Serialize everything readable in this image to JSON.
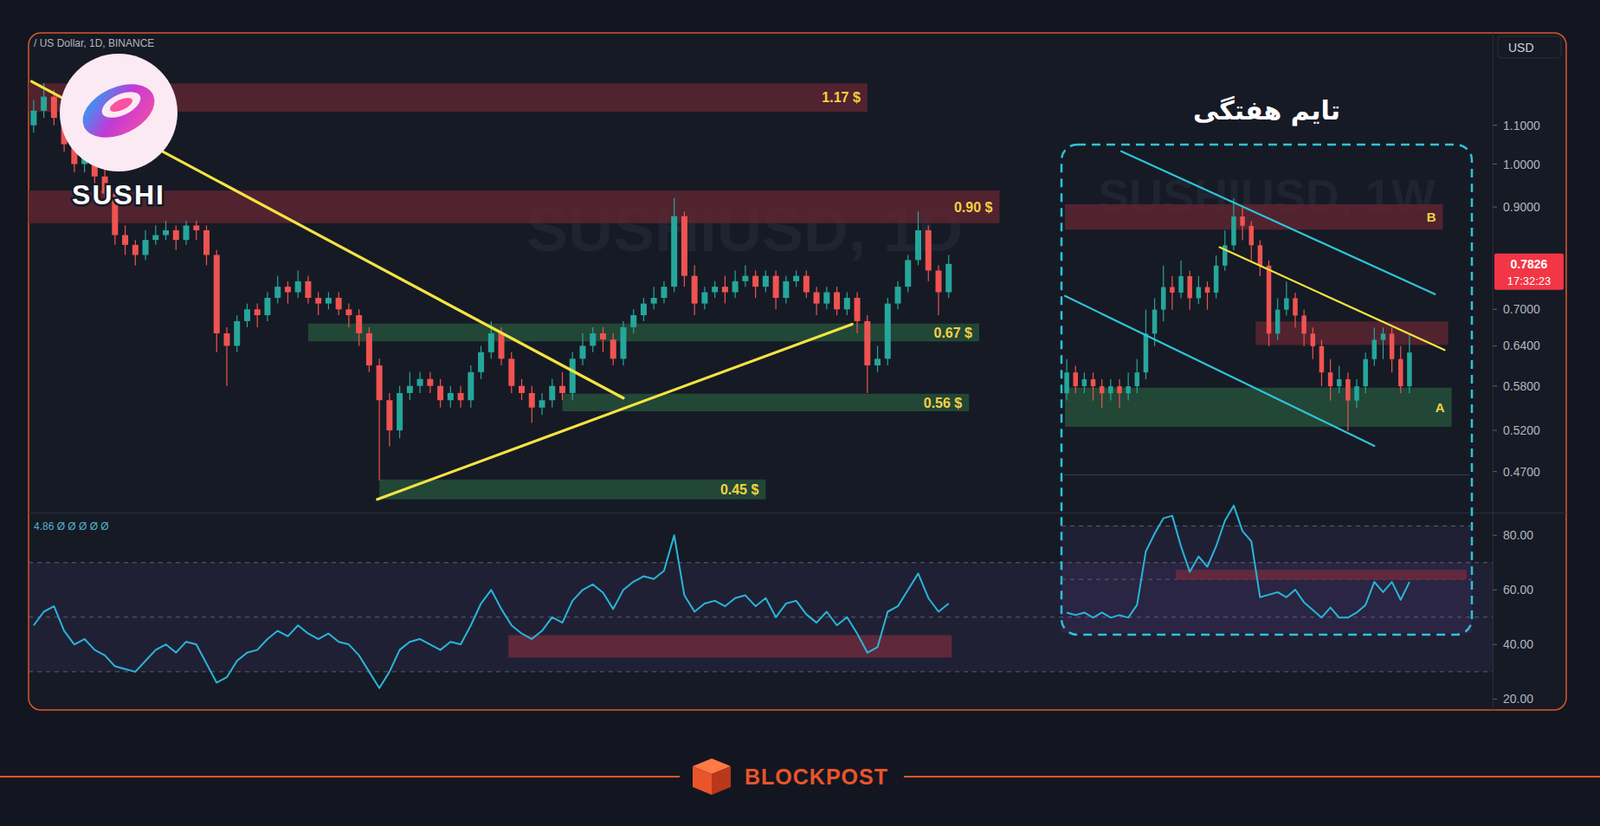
{
  "chart_data": [
    {
      "type": "candlestick",
      "title": "/ US Dollar, 1D, BINANCE",
      "watermark": "SUSHIUSD, 1D",
      "logo_text": "SUSHI",
      "currency": "USD",
      "countdown": "17:32:23",
      "log": "y",
      "grid": false,
      "categories": [
        null,
        null,
        null,
        null,
        null,
        null,
        null,
        null,
        null,
        null,
        null,
        null,
        null,
        null,
        null,
        null,
        null,
        null,
        null,
        null,
        null,
        null,
        null,
        null,
        null,
        null,
        null,
        null,
        null,
        null,
        null,
        null,
        null,
        null,
        null,
        null,
        null,
        null,
        null,
        null,
        null,
        null,
        null,
        null,
        null,
        null,
        null,
        null,
        null,
        null,
        null,
        null,
        null,
        null,
        null,
        null,
        null,
        null,
        null,
        null,
        null,
        null,
        null,
        null,
        null,
        null,
        null,
        null,
        null,
        null,
        null,
        null,
        null,
        null,
        null,
        null,
        null,
        null,
        null,
        null,
        null,
        null,
        null,
        null,
        null,
        null,
        null,
        null,
        null,
        null,
        null
      ],
      "open": [
        1.1,
        1.14,
        1.18,
        1.12,
        1.05,
        1.0,
        1.02,
        0.97,
        0.93,
        0.84,
        0.82,
        0.8,
        0.83,
        0.84,
        0.85,
        0.83,
        0.86,
        0.85,
        0.8,
        0.66,
        0.64,
        0.68,
        0.7,
        0.69,
        0.72,
        0.74,
        0.73,
        0.75,
        0.72,
        0.71,
        0.72,
        0.7,
        0.69,
        0.66,
        0.61,
        0.56,
        0.52,
        0.57,
        0.58,
        0.59,
        0.58,
        0.56,
        0.57,
        0.56,
        0.6,
        0.63,
        0.66,
        0.62,
        0.58,
        0.57,
        0.55,
        0.56,
        0.58,
        0.57,
        0.62,
        0.64,
        0.66,
        0.65,
        0.62,
        0.67,
        0.69,
        0.71,
        0.72,
        0.74,
        0.88,
        0.76,
        0.71,
        0.73,
        0.74,
        0.73,
        0.75,
        0.76,
        0.74,
        0.76,
        0.72,
        0.75,
        0.76,
        0.73,
        0.71,
        0.73,
        0.7,
        0.72,
        0.68,
        0.61,
        0.62,
        0.71,
        0.74,
        0.79,
        0.85,
        0.77,
        0.73
      ],
      "high": [
        1.17,
        1.22,
        1.2,
        1.14,
        1.07,
        1.04,
        1.03,
        0.99,
        0.94,
        0.86,
        0.83,
        0.85,
        0.86,
        0.87,
        0.86,
        0.87,
        0.87,
        0.86,
        0.81,
        0.67,
        0.69,
        0.71,
        0.71,
        0.73,
        0.76,
        0.75,
        0.77,
        0.76,
        0.73,
        0.73,
        0.73,
        0.71,
        0.7,
        0.67,
        0.62,
        0.57,
        0.58,
        0.6,
        0.6,
        0.6,
        0.59,
        0.58,
        0.58,
        0.61,
        0.64,
        0.68,
        0.67,
        0.63,
        0.59,
        0.58,
        0.57,
        0.59,
        0.6,
        0.63,
        0.66,
        0.67,
        0.67,
        0.66,
        0.68,
        0.7,
        0.72,
        0.74,
        0.75,
        0.92,
        0.89,
        0.78,
        0.74,
        0.75,
        0.76,
        0.77,
        0.78,
        0.77,
        0.77,
        0.77,
        0.76,
        0.77,
        0.77,
        0.74,
        0.74,
        0.74,
        0.73,
        0.73,
        0.69,
        0.64,
        0.72,
        0.75,
        0.8,
        0.89,
        0.86,
        0.78,
        0.8
      ],
      "low": [
        1.08,
        1.12,
        1.1,
        1.03,
        0.98,
        0.98,
        0.95,
        0.91,
        0.82,
        0.8,
        0.78,
        0.79,
        0.82,
        0.83,
        0.81,
        0.82,
        0.83,
        0.78,
        0.63,
        0.58,
        0.63,
        0.67,
        0.67,
        0.68,
        0.71,
        0.71,
        0.72,
        0.71,
        0.69,
        0.7,
        0.69,
        0.67,
        0.64,
        0.6,
        0.46,
        0.5,
        0.51,
        0.56,
        0.57,
        0.57,
        0.55,
        0.55,
        0.55,
        0.55,
        0.59,
        0.62,
        0.61,
        0.57,
        0.56,
        0.53,
        0.54,
        0.55,
        0.56,
        0.56,
        0.61,
        0.63,
        0.63,
        0.61,
        0.61,
        0.66,
        0.68,
        0.7,
        0.71,
        0.73,
        0.74,
        0.69,
        0.7,
        0.72,
        0.71,
        0.72,
        0.74,
        0.72,
        0.73,
        0.7,
        0.71,
        0.74,
        0.72,
        0.69,
        0.7,
        0.69,
        0.69,
        0.66,
        0.57,
        0.6,
        0.61,
        0.7,
        0.73,
        0.78,
        0.75,
        0.69,
        0.72
      ],
      "close": [
        1.14,
        1.18,
        1.12,
        1.05,
        1.0,
        1.02,
        0.97,
        0.93,
        0.84,
        0.82,
        0.8,
        0.83,
        0.84,
        0.85,
        0.83,
        0.86,
        0.85,
        0.8,
        0.66,
        0.64,
        0.68,
        0.7,
        0.69,
        0.72,
        0.74,
        0.73,
        0.75,
        0.72,
        0.71,
        0.72,
        0.7,
        0.69,
        0.66,
        0.61,
        0.56,
        0.52,
        0.57,
        0.58,
        0.59,
        0.58,
        0.56,
        0.57,
        0.56,
        0.6,
        0.63,
        0.66,
        0.62,
        0.58,
        0.57,
        0.55,
        0.56,
        0.58,
        0.57,
        0.62,
        0.64,
        0.66,
        0.65,
        0.62,
        0.67,
        0.69,
        0.71,
        0.72,
        0.74,
        0.88,
        0.76,
        0.71,
        0.73,
        0.74,
        0.73,
        0.75,
        0.76,
        0.74,
        0.76,
        0.72,
        0.75,
        0.76,
        0.73,
        0.71,
        0.73,
        0.7,
        0.72,
        0.68,
        0.61,
        0.62,
        0.71,
        0.74,
        0.79,
        0.85,
        0.77,
        0.73,
        0.7826
      ],
      "xlim": [
        -0.5,
        143.5
      ],
      "ylim": [
        0.425,
        1.38
      ],
      "yticks": [
        {
          "value": 1.1,
          "label": "1.1000"
        },
        {
          "value": 1.0,
          "label": "1.0000"
        },
        {
          "value": 0.9,
          "label": "0.9000"
        },
        {
          "value": 0.7,
          "label": "0.7000"
        },
        {
          "value": 0.64,
          "label": "0.6400"
        },
        {
          "value": 0.58,
          "label": "0.5800"
        },
        {
          "value": 0.52,
          "label": "0.5200"
        },
        {
          "value": 0.47,
          "label": "0.4700"
        }
      ],
      "zones": [
        {
          "label": "1.17 $",
          "x0": -0.5,
          "x1": 82,
          "low": 1.137,
          "high": 1.219,
          "color": "#5c2631"
        },
        {
          "label": "0.90 $",
          "x0": -0.5,
          "x1": 95,
          "low": 0.865,
          "high": 0.937,
          "color": "#5c2631"
        },
        {
          "label": "0.67 $",
          "x0": 27,
          "x1": 93,
          "low": 0.647,
          "high": 0.676,
          "color": "#24503a"
        },
        {
          "label": "0.56 $",
          "x0": 52,
          "x1": 92,
          "low": 0.545,
          "high": 0.569,
          "color": "#24503a"
        },
        {
          "label": "0.45 $",
          "x0": 34,
          "x1": 72,
          "low": 0.439,
          "high": 0.461,
          "color": "#24503a"
        }
      ],
      "trendlines": [
        {
          "x0": -0.2,
          "y0": 1.225,
          "x1": 58,
          "y1": 0.563,
          "color": "#f5e342"
        },
        {
          "x0": 33.8,
          "y0": 0.439,
          "x1": 80.5,
          "y1": 0.675,
          "color": "#f5e342"
        }
      ]
    },
    {
      "type": "line",
      "title": "4.86  Ø Ø Ø Ø Ø",
      "grid": false,
      "categories": [
        null,
        null,
        null,
        null,
        null,
        null,
        null,
        null,
        null,
        null,
        null,
        null,
        null,
        null,
        null,
        null,
        null,
        null,
        null,
        null,
        null,
        null,
        null,
        null,
        null,
        null,
        null,
        null,
        null,
        null,
        null,
        null,
        null,
        null,
        null,
        null,
        null,
        null,
        null,
        null,
        null,
        null,
        null,
        null,
        null,
        null,
        null,
        null,
        null,
        null,
        null,
        null,
        null,
        null,
        null,
        null,
        null,
        null,
        null,
        null,
        null,
        null,
        null,
        null,
        null,
        null,
        null,
        null,
        null,
        null,
        null,
        null,
        null,
        null,
        null,
        null,
        null,
        null,
        null,
        null,
        null,
        null,
        null,
        null,
        null,
        null,
        null,
        null,
        null,
        null,
        null
      ],
      "series": [
        {
          "color": "#29b6d9",
          "values": [
            47,
            52,
            54,
            45,
            40,
            42,
            38,
            36,
            32,
            31,
            30,
            34,
            38,
            40,
            37,
            41,
            40,
            33,
            26,
            28,
            34,
            37,
            38,
            42,
            45,
            43,
            47,
            44,
            42,
            44,
            41,
            40,
            36,
            30,
            24,
            30,
            38,
            41,
            42,
            40,
            38,
            41,
            40,
            47,
            55,
            60,
            53,
            47,
            44,
            42,
            45,
            50,
            48,
            56,
            60,
            62,
            59,
            53,
            60,
            63,
            65,
            64,
            67,
            80,
            58,
            52,
            55,
            56,
            54,
            57,
            58,
            54,
            57,
            50,
            55,
            56,
            51,
            48,
            52,
            47,
            50,
            44,
            37,
            39,
            52,
            54,
            60,
            66,
            57,
            52,
            55
          ]
        }
      ],
      "xlim": [
        -0.5,
        143.5
      ],
      "ylim": [
        16,
        88
      ],
      "yticks": [
        {
          "value": 80,
          "label": "80.00"
        },
        {
          "value": 60,
          "label": "60.00"
        },
        {
          "value": 40,
          "label": "40.00"
        },
        {
          "value": 20,
          "label": "20.00"
        }
      ],
      "band": [
        30,
        70
      ],
      "levels": [
        70,
        50,
        30
      ],
      "zones": [
        {
          "x0": 46.7,
          "x1": 90.3,
          "low": 35.2,
          "high": 43.4,
          "color": "#6b2a3c"
        }
      ]
    },
    {
      "type": "candlestick",
      "title": "تایم هفتگی",
      "watermark": "SUSHIUSD, 1W",
      "log": "y",
      "tick_labels": false,
      "categories": [
        null,
        null,
        null,
        null,
        null,
        null,
        null,
        null,
        null,
        null,
        null,
        null,
        null,
        null,
        null,
        null,
        null,
        null,
        null,
        null,
        null,
        null,
        null,
        null,
        null,
        null,
        null,
        null,
        null,
        null,
        null,
        null,
        null,
        null,
        null,
        null,
        null,
        null,
        null,
        null
      ],
      "open": [
        0.57,
        0.6,
        0.58,
        0.59,
        0.58,
        0.57,
        0.58,
        0.57,
        0.58,
        0.6,
        0.66,
        0.7,
        0.74,
        0.73,
        0.76,
        0.72,
        0.74,
        0.73,
        0.78,
        0.82,
        0.88,
        0.86,
        0.82,
        0.78,
        0.66,
        0.7,
        0.72,
        0.69,
        0.66,
        0.64,
        0.6,
        0.58,
        0.59,
        0.56,
        0.58,
        0.62,
        0.65,
        0.66,
        0.62,
        0.58
      ],
      "high": [
        0.62,
        0.61,
        0.6,
        0.6,
        0.59,
        0.59,
        0.59,
        0.6,
        0.62,
        0.7,
        0.72,
        0.78,
        0.76,
        0.79,
        0.77,
        0.76,
        0.75,
        0.8,
        0.85,
        0.92,
        0.9,
        0.87,
        0.83,
        0.79,
        0.72,
        0.75,
        0.73,
        0.7,
        0.67,
        0.65,
        0.62,
        0.61,
        0.6,
        0.59,
        0.63,
        0.67,
        0.67,
        0.67,
        0.64,
        0.66
      ],
      "low": [
        0.56,
        0.57,
        0.57,
        0.56,
        0.55,
        0.56,
        0.55,
        0.56,
        0.57,
        0.59,
        0.64,
        0.68,
        0.7,
        0.72,
        0.7,
        0.71,
        0.7,
        0.72,
        0.77,
        0.81,
        0.83,
        0.79,
        0.76,
        0.64,
        0.65,
        0.69,
        0.67,
        0.64,
        0.62,
        0.58,
        0.56,
        0.57,
        0.52,
        0.55,
        0.57,
        0.61,
        0.62,
        0.6,
        0.57,
        0.57
      ],
      "close": [
        0.6,
        0.58,
        0.59,
        0.58,
        0.57,
        0.58,
        0.57,
        0.58,
        0.6,
        0.66,
        0.7,
        0.74,
        0.73,
        0.76,
        0.72,
        0.74,
        0.73,
        0.78,
        0.82,
        0.88,
        0.86,
        0.82,
        0.78,
        0.66,
        0.7,
        0.72,
        0.69,
        0.66,
        0.64,
        0.6,
        0.58,
        0.59,
        0.56,
        0.58,
        0.62,
        0.65,
        0.66,
        0.62,
        0.58,
        0.63
      ],
      "xlim": [
        -0.6,
        46.1
      ],
      "ylim": [
        0.467,
        1.05
      ],
      "zones": [
        {
          "label": "B",
          "x0": -0.2,
          "x1": 42.8,
          "low": 0.852,
          "high": 0.907,
          "color": "#5c2631"
        },
        {
          "x0": 21.5,
          "x1": 43.4,
          "low": 0.642,
          "high": 0.68,
          "color": "#5c2631"
        },
        {
          "label": "A",
          "x0": -0.2,
          "x1": 43.8,
          "low": 0.525,
          "high": 0.578,
          "color": "#24503a"
        }
      ],
      "trendlines": [
        {
          "x0": 6.2,
          "y0": 1.033,
          "x1": 41.9,
          "y1": 0.727,
          "color": "#2ec4d6"
        },
        {
          "x0": -0.2,
          "y0": 0.724,
          "x1": 35,
          "y1": 0.501,
          "color": "#2ec4d6"
        },
        {
          "x0": 17.4,
          "y0": 0.816,
          "x1": 43,
          "y1": 0.634,
          "color": "#f5e342"
        }
      ]
    },
    {
      "type": "line",
      "tick_labels": false,
      "categories": [
        null,
        null,
        null,
        null,
        null,
        null,
        null,
        null,
        null,
        null,
        null,
        null,
        null,
        null,
        null,
        null,
        null,
        null,
        null,
        null,
        null,
        null,
        null,
        null,
        null,
        null,
        null,
        null,
        null,
        null,
        null,
        null,
        null,
        null,
        null,
        null,
        null,
        null,
        null,
        null
      ],
      "series": [
        {
          "color": "#29b6d9",
          "values": [
            52,
            51,
            52,
            50,
            52,
            50,
            51,
            50,
            55,
            76,
            83,
            89,
            90,
            78,
            68,
            74,
            70,
            78,
            88,
            94,
            84,
            80,
            58,
            59,
            60,
            58,
            61,
            56,
            53,
            50,
            54,
            50,
            50,
            52,
            55,
            64,
            60,
            64,
            57,
            64
          ]
        }
      ],
      "xlim": [
        -0.6,
        46.1
      ],
      "ylim": [
        44,
        96
      ],
      "band": [
        44,
        86
      ],
      "levels": [
        86,
        65
      ],
      "zones": [
        {
          "x0": 12.4,
          "x1": 45.5,
          "low": 64.8,
          "high": 68.8,
          "color": "#6b2a3c"
        }
      ]
    }
  ],
  "footer": "BLOCKPOST"
}
